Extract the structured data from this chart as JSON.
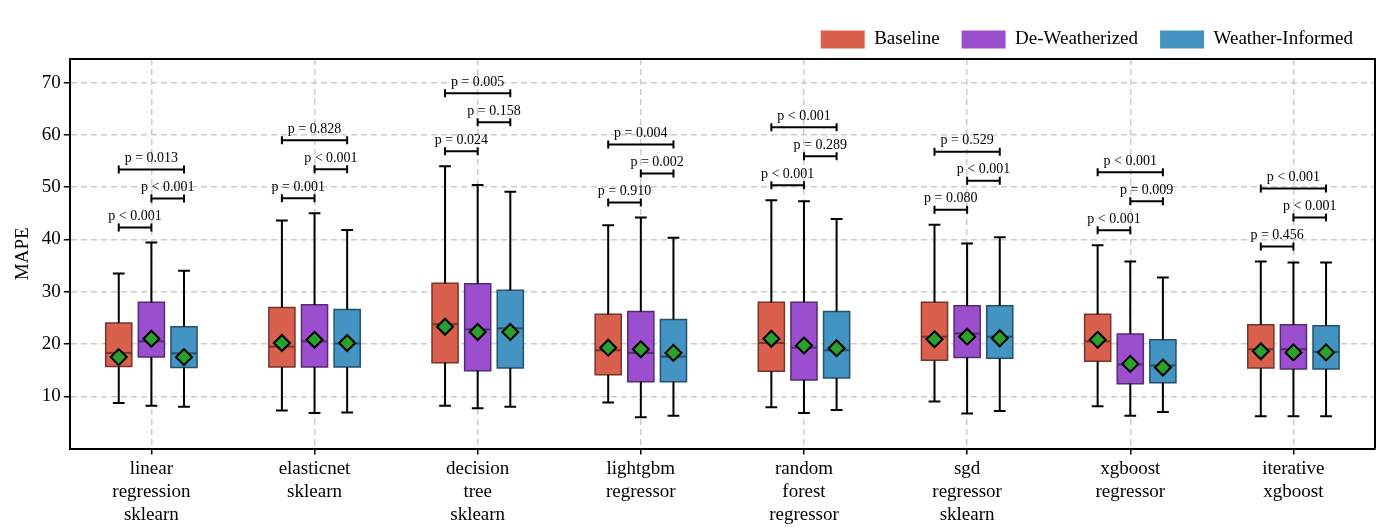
{
  "chart_data": {
    "type": "box",
    "ylabel": "MAPE",
    "categories": [
      "linear regression sklearn",
      "elasticnet sklearn",
      "decision tree sklearn",
      "lightgbm regressor",
      "random forest regressor",
      "sgd regressor sklearn",
      "xgboost regressor",
      "iterative xgboost"
    ],
    "ylim": [
      0,
      74.5
    ],
    "yticks": [
      10,
      20,
      30,
      40,
      50,
      60,
      70
    ],
    "grid": true,
    "legend": "top right",
    "marker": "diamond",
    "series": [
      {
        "name": "Baseline",
        "color": "#d9604d",
        "boxes": [
          {
            "low": 8.7,
            "q1": 15.7,
            "median": 18.3,
            "q3": 24,
            "high": 33.5,
            "mean": 17.5
          },
          {
            "low": 7.3,
            "q1": 15.6,
            "median": 19.5,
            "q3": 27,
            "high": 43.6,
            "mean": 20.2
          },
          {
            "low": 8.2,
            "q1": 16.4,
            "median": 23.8,
            "q3": 31.6,
            "high": 54,
            "mean": 23.3
          },
          {
            "low": 8.8,
            "q1": 14.1,
            "median": 18.8,
            "q3": 25.7,
            "high": 42.7,
            "mean": 19.3
          },
          {
            "low": 7.9,
            "q1": 14.8,
            "median": 20.2,
            "q3": 28,
            "high": 47.5,
            "mean": 21
          },
          {
            "low": 9,
            "q1": 16.9,
            "median": 21.4,
            "q3": 28,
            "high": 42.8,
            "mean": 20.9
          },
          {
            "low": 8.1,
            "q1": 16.7,
            "median": 20.5,
            "q3": 25.7,
            "high": 38.9,
            "mean": 20.8
          },
          {
            "low": 6.2,
            "q1": 15.4,
            "median": 19,
            "q3": 23.7,
            "high": 35.8,
            "mean": 18.6
          }
        ]
      },
      {
        "name": "De-Weatherized",
        "color": "#9b4fcf",
        "boxes": [
          {
            "low": 8.2,
            "q1": 17.5,
            "median": 20.5,
            "q3": 28,
            "high": 39.4,
            "mean": 21
          },
          {
            "low": 6.8,
            "q1": 15.6,
            "median": 20.5,
            "q3": 27.5,
            "high": 45,
            "mean": 20.8
          },
          {
            "low": 7.7,
            "q1": 14.9,
            "median": 22.8,
            "q3": 31.5,
            "high": 50.4,
            "mean": 22.3
          },
          {
            "low": 6,
            "q1": 12.8,
            "median": 18.3,
            "q3": 26.2,
            "high": 44.2,
            "mean": 19
          },
          {
            "low": 6.8,
            "q1": 13.1,
            "median": 19.3,
            "q3": 28,
            "high": 47.3,
            "mean": 19.7
          },
          {
            "low": 6.7,
            "q1": 17.4,
            "median": 22,
            "q3": 27.3,
            "high": 39.2,
            "mean": 21.4
          },
          {
            "low": 6.3,
            "q1": 12.4,
            "median": 16.1,
            "q3": 21.9,
            "high": 35.8,
            "mean": 16.2
          },
          {
            "low": 6.2,
            "q1": 15.2,
            "median": 19,
            "q3": 23.7,
            "high": 35.6,
            "mean": 18.4
          }
        ]
      },
      {
        "name": "Weather-Informed",
        "color": "#4393c3",
        "boxes": [
          {
            "low": 8,
            "q1": 15.5,
            "median": 18.2,
            "q3": 23.3,
            "high": 34,
            "mean": 17.5
          },
          {
            "low": 6.9,
            "q1": 15.6,
            "median": 20.1,
            "q3": 26.6,
            "high": 41.8,
            "mean": 20.2
          },
          {
            "low": 8,
            "q1": 15.4,
            "median": 23,
            "q3": 30.3,
            "high": 49.1,
            "mean": 22.3
          },
          {
            "low": 6.3,
            "q1": 12.8,
            "median": 17.6,
            "q3": 24.7,
            "high": 40.3,
            "mean": 18.3
          },
          {
            "low": 7.4,
            "q1": 13.5,
            "median": 18.8,
            "q3": 26.2,
            "high": 43.9,
            "mean": 19.2
          },
          {
            "low": 7.2,
            "q1": 17.3,
            "median": 21.4,
            "q3": 27.3,
            "high": 40.4,
            "mean": 21.1
          },
          {
            "low": 7,
            "q1": 12.6,
            "median": 15.9,
            "q3": 20.8,
            "high": 32.7,
            "mean": 15.5
          },
          {
            "low": 6.2,
            "q1": 15.2,
            "median": 18.5,
            "q3": 23.5,
            "high": 35.6,
            "mean": 18.4
          }
        ]
      }
    ],
    "annotations": [
      "p < 0.001",
      "p < 0.001",
      "p = 0.013",
      "p = 0.001",
      "p < 0.001",
      "p = 0.828",
      "p = 0.024",
      "p = 0.158",
      "p = 0.005",
      "p = 0.910",
      "p = 0.002",
      "p = 0.004",
      "p < 0.001",
      "p = 0.289",
      "p < 0.001",
      "p = 0.080",
      "p < 0.001",
      "p = 0.529",
      "p < 0.001",
      "p = 0.009",
      "p < 0.001",
      "p = 0.456",
      "p < 0.001",
      "p < 0.001"
    ]
  }
}
